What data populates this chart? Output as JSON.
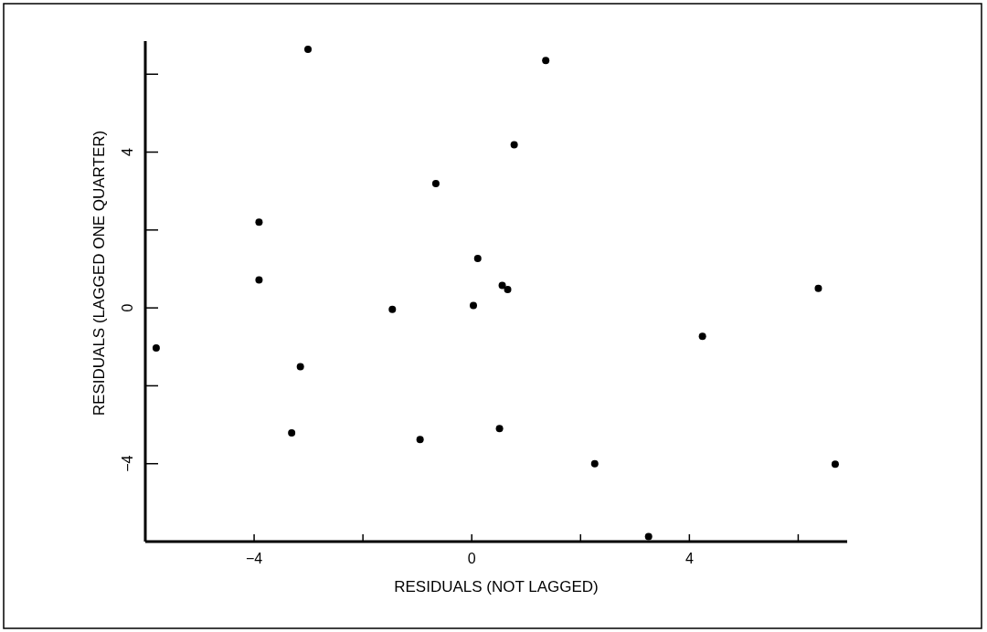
{
  "chart_data": {
    "type": "scatter",
    "xlabel": "RESIDUALS (NOT LAGGED)",
    "ylabel": "RESIDUALS (LAGGED ONE QUARTER)",
    "xlim": [
      -6,
      6.9
    ],
    "ylim": [
      -6,
      6.85
    ],
    "xticks": [
      -4,
      {
        "value": -2,
        "label": null
      },
      0,
      {
        "value": 2,
        "label": null
      },
      4,
      {
        "value": 6,
        "label": null
      }
    ],
    "yticks": [
      -4,
      {
        "value": -2,
        "label": null
      },
      0,
      {
        "value": 2,
        "label": null
      },
      4,
      {
        "value": 6,
        "label": null
      }
    ],
    "marker": "circle",
    "series": [
      {
        "color": "#000000",
        "x": [
          -5.8,
          -3.01,
          -3.91,
          -3.91,
          -3.15,
          -3.31,
          -1.46,
          -0.95,
          -0.66,
          0.03,
          0.11,
          0.56,
          0.66,
          0.78,
          1.36,
          0.51,
          2.26,
          3.25,
          4.24,
          6.37,
          6.68
        ],
        "values": [
          -1.03,
          6.64,
          2.2,
          0.72,
          -1.51,
          -3.21,
          -0.04,
          -3.38,
          3.19,
          0.06,
          1.27,
          0.58,
          0.47,
          4.19,
          6.35,
          -3.1,
          -4.0,
          -5.87,
          -0.73,
          0.5,
          -4.01
        ]
      }
    ]
  }
}
